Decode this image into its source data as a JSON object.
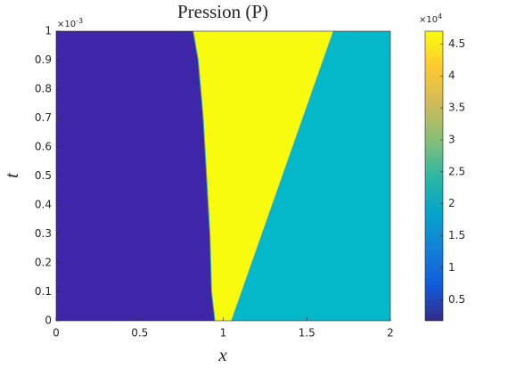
{
  "chart_data": {
    "type": "heatmap",
    "title": "Pression (P)",
    "xlabel": "x",
    "ylabel": "t",
    "xlim": [
      0,
      2
    ],
    "xticks": [
      0,
      0.5,
      1,
      1.5,
      2
    ],
    "ylim": [
      0,
      1
    ],
    "yticks": [
      0,
      0.1,
      0.2,
      0.3,
      0.4,
      0.5,
      0.6,
      0.7,
      0.8,
      0.9,
      1
    ],
    "y_multiplier": {
      "base": "×10",
      "exponent": "-3"
    },
    "regions": [
      {
        "value": 0.2,
        "color": "#3e26a8"
      },
      {
        "value": 4.7,
        "color": "#f9fb0e"
      },
      {
        "value": 2.5,
        "color": "#05b8c9"
      }
    ],
    "fronts": [
      {
        "t": [
          0,
          0.1,
          0.3,
          0.5,
          0.7,
          0.9,
          1
        ],
        "x": [
          0.95,
          0.93,
          0.92,
          0.9,
          0.88,
          0.85,
          0.82
        ]
      },
      {
        "t": [
          0,
          1
        ],
        "x": [
          1.05,
          1.66
        ]
      }
    ],
    "clim": [
      0.17,
      4.7
    ],
    "cticks": [
      0.5,
      1,
      1.5,
      2,
      2.5,
      3,
      3.5,
      4,
      4.5
    ],
    "c_multiplier": {
      "base": "×10",
      "exponent": "4"
    },
    "colormap": [
      "#352a87",
      "#0f5cdd",
      "#1481d6",
      "#06a4ca",
      "#2eb7a4",
      "#87bf77",
      "#d1bb59",
      "#fec832",
      "#f9fb0e"
    ]
  }
}
